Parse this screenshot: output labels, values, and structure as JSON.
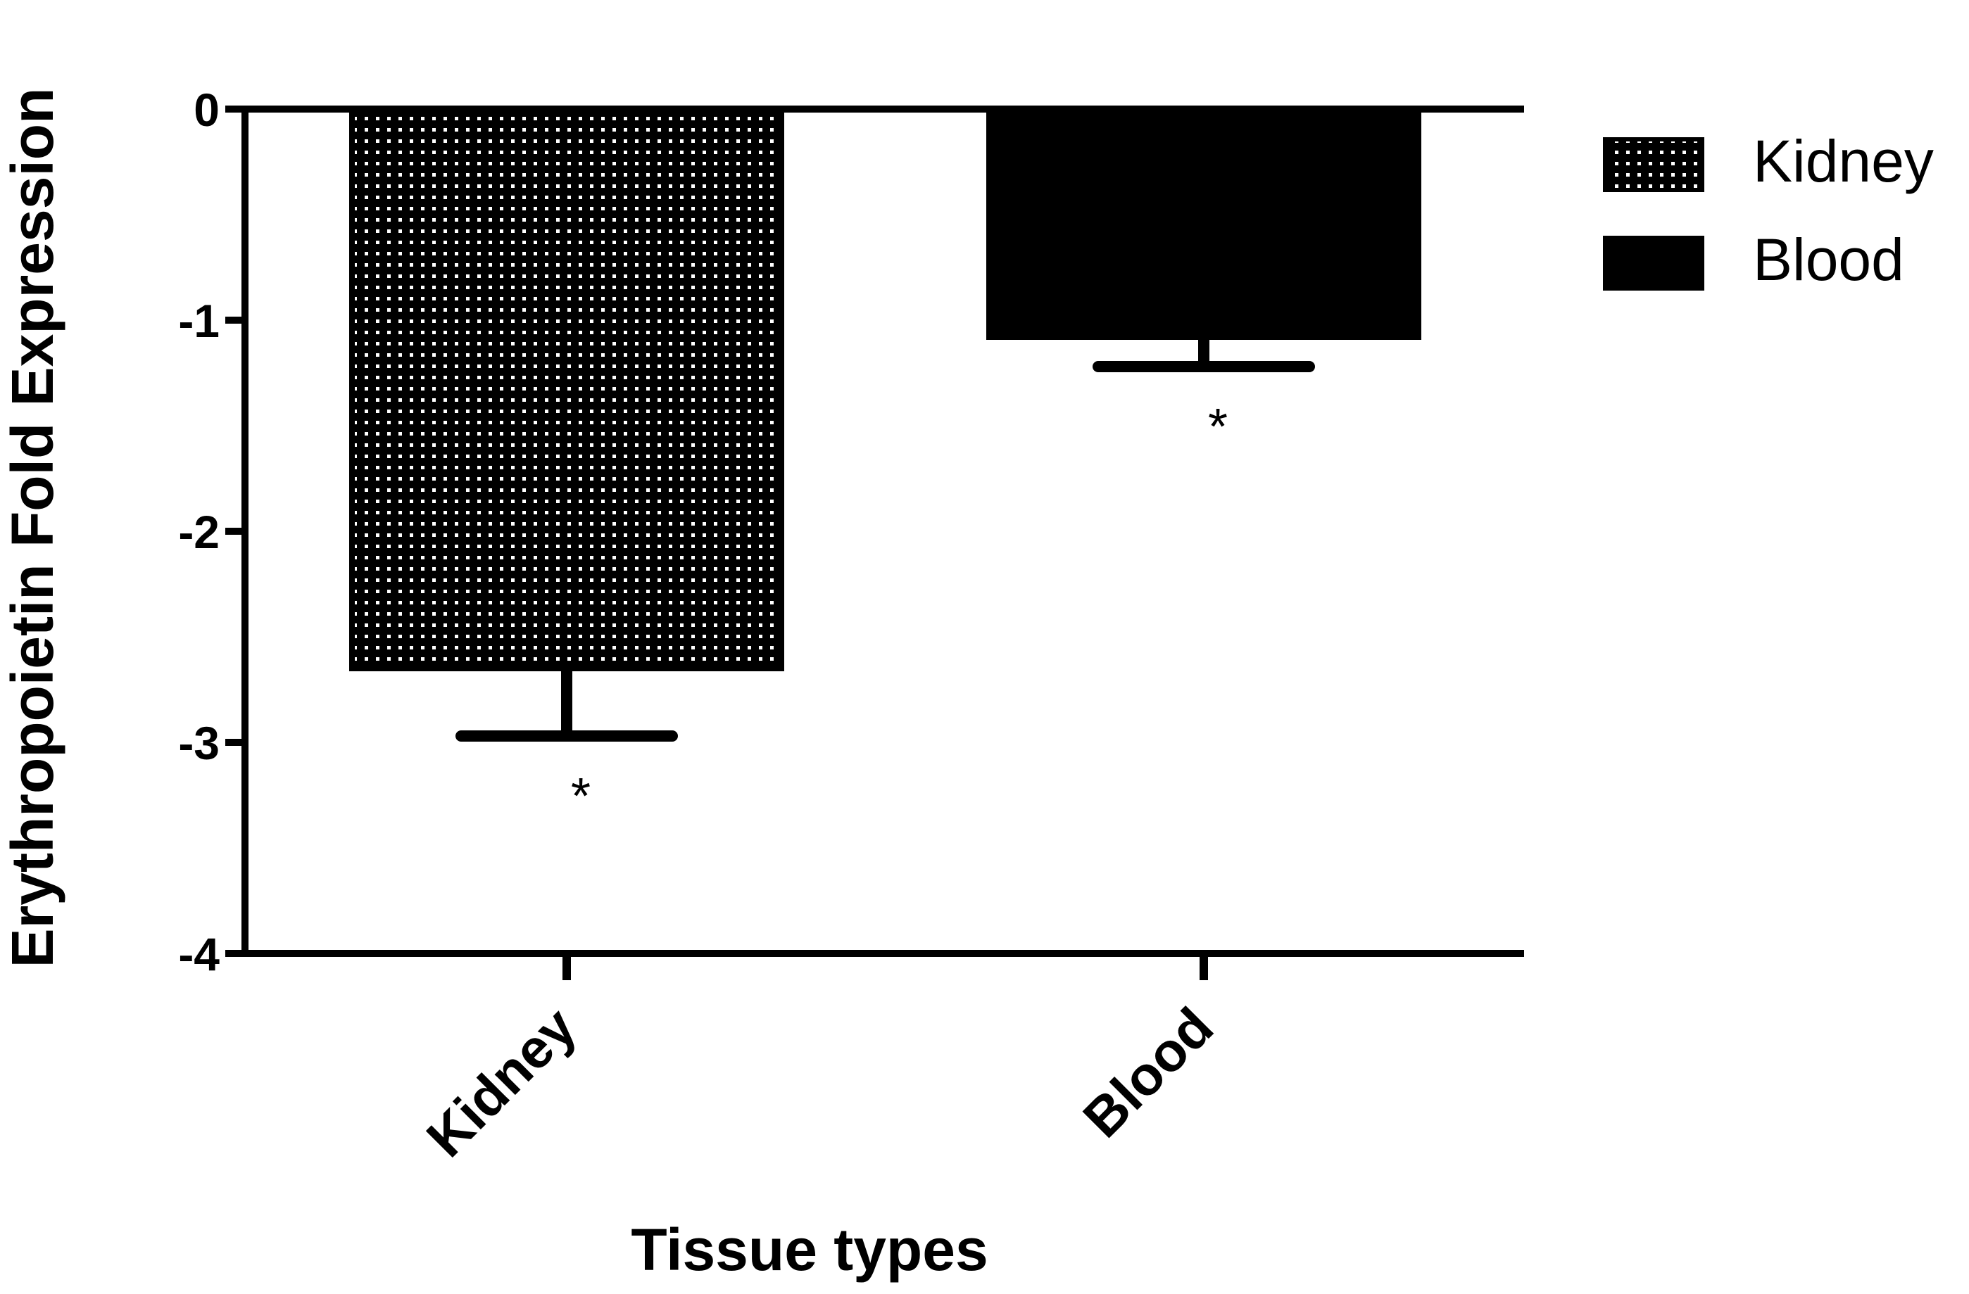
{
  "chart_data": {
    "type": "bar",
    "title": "",
    "xlabel": "Tissue types",
    "ylabel": "Erythropoietin Fold Expression",
    "ylim": [
      -4,
      0
    ],
    "yticks": [
      0,
      -1,
      -2,
      -3,
      -4
    ],
    "ytick_labels": [
      "0",
      "-1",
      "-2",
      "-3",
      "-4"
    ],
    "categories": [
      "Kidney",
      "Blood"
    ],
    "series": [
      {
        "name": "Kidney",
        "category": "Kidney",
        "value": -2.65,
        "error": 0.32,
        "pattern": "dotted",
        "annotation": "*"
      },
      {
        "name": "Blood",
        "category": "Blood",
        "value": -1.08,
        "error": 0.14,
        "pattern": "solid",
        "annotation": "*"
      }
    ],
    "legend_position": "top-right",
    "grid": false,
    "colors": {
      "bar": "#000000",
      "dots": "#ffffff",
      "axis": "#000000"
    }
  }
}
